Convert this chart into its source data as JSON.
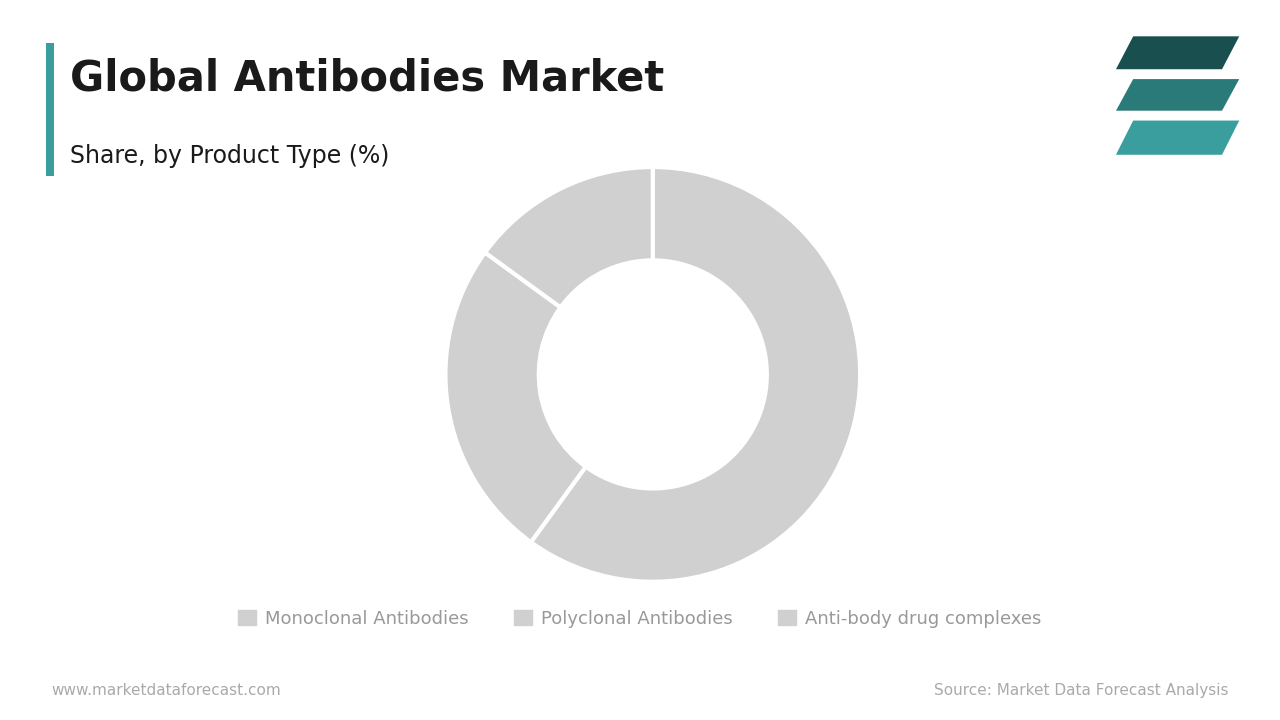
{
  "title": "Global Antibodies Market",
  "subtitle": "Share, by Product Type (%)",
  "segments": [
    {
      "label": "Monoclonal Antibodies",
      "value": 60
    },
    {
      "label": "Polyclonal Antibodies",
      "value": 25
    },
    {
      "label": "Anti-body drug complexes",
      "value": 15
    }
  ],
  "colors": [
    "#d0d0d0",
    "#d0d0d0",
    "#d0d0d0"
  ],
  "wedge_edge_color": "#ffffff",
  "wedge_linewidth": 3.0,
  "donut_hole": 0.55,
  "background_color": "#ffffff",
  "title_color": "#1a1a1a",
  "subtitle_color": "#1a1a1a",
  "title_fontsize": 30,
  "subtitle_fontsize": 17,
  "accent_color": "#3a9e9e",
  "legend_fontsize": 13,
  "legend_color": "#999999",
  "footer_left": "www.marketdataforecast.com",
  "footer_right": "Source: Market Data Forecast Analysis",
  "footer_fontsize": 11,
  "footer_color": "#aaaaaa",
  "start_angle": 90,
  "logo_colors": [
    "#3a9e9e",
    "#2a7a7a",
    "#1a4f4f"
  ]
}
